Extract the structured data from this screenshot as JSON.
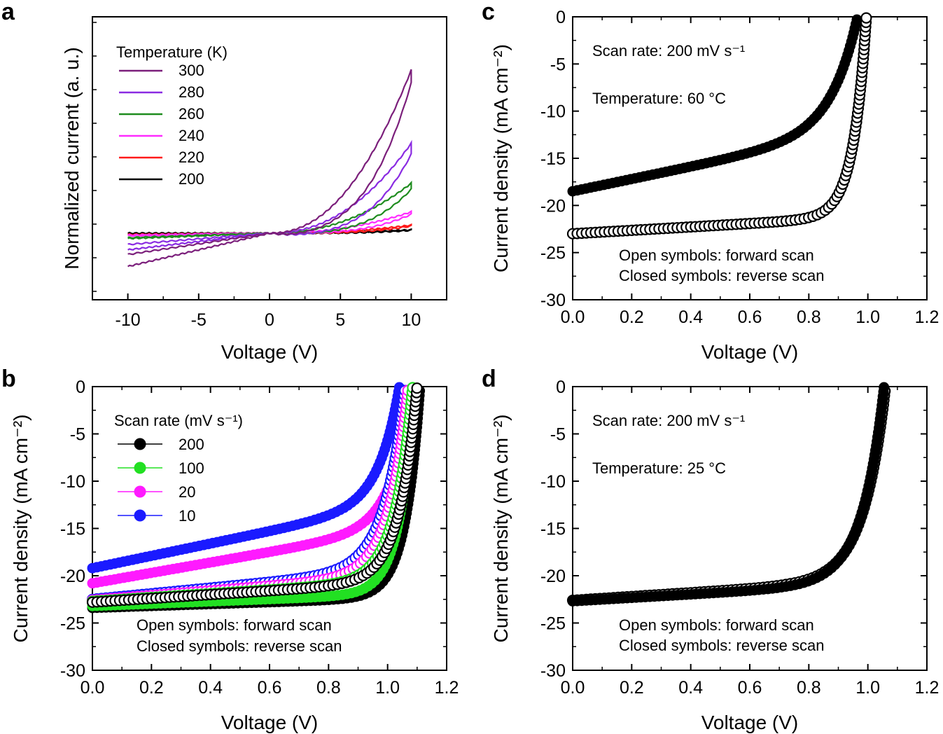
{
  "chart_data": [
    {
      "panel": "a",
      "type": "line",
      "xlabel": "Voltage (V)",
      "ylabel": "Normalized current (a. u.)",
      "xlim": [
        -12.5,
        12.5
      ],
      "ylim": [
        -1.0,
        3.25
      ],
      "x_ticks": [
        "-10",
        "-5",
        "0",
        "5",
        "10"
      ],
      "legend_title": "Temperature (K)",
      "series": [
        {
          "name": "300",
          "color": "#7b1f7b",
          "v_end": -0.5,
          "i_peak": 2.45,
          "i_return": 1.8,
          "i_neg": 0.1
        },
        {
          "name": "280",
          "color": "#8a2be2",
          "v_end": -0.25,
          "i_peak": 1.35,
          "i_return": 0.8,
          "i_neg": 0.25
        },
        {
          "name": "260",
          "color": "#1e8c1e",
          "v_end": -0.08,
          "i_peak": 0.75,
          "i_return": 0.45,
          "i_neg": 0.35
        },
        {
          "name": "240",
          "color": "#ff2cff",
          "v_end": -0.03,
          "i_peak": 0.32,
          "i_return": 0.2,
          "i_neg": 0.4
        },
        {
          "name": "220",
          "color": "#ff1a1a",
          "v_end": -0.02,
          "i_peak": 0.12,
          "i_return": 0.08,
          "i_neg": 0.42
        },
        {
          "name": "200",
          "color": "#000000",
          "v_end": 0.0,
          "i_peak": 0.05,
          "i_return": 0.03,
          "i_neg": 0.44
        }
      ]
    },
    {
      "panel": "b",
      "type": "scatter",
      "xlabel": "Voltage (V)",
      "ylabel": "Current density (mA cm⁻²)",
      "xlim": [
        0.0,
        1.2
      ],
      "ylim": [
        -30,
        0
      ],
      "x_ticks": [
        "0.0",
        "0.2",
        "0.4",
        "0.6",
        "0.8",
        "1.0",
        "1.2"
      ],
      "y_ticks": [
        "0",
        "-5",
        "-10",
        "-15",
        "-20",
        "-25",
        "-30"
      ],
      "legend_title": "Scan rate (mV s⁻¹)",
      "note_open": "Open symbols:    forward scan",
      "note_closed": "Closed symbols: reverse scan",
      "series": [
        {
          "name": "200",
          "color": "#000000",
          "reverse": {
            "jsc": 23.4,
            "voc": 1.11,
            "s": 0.05,
            "t": 1.0
          },
          "forward": {
            "jsc": 22.8,
            "voc": 1.1,
            "s": 0.06,
            "t": 2.0
          }
        },
        {
          "name": "100",
          "color": "#22e022",
          "reverse": {
            "jsc": 23.2,
            "voc": 1.09,
            "s": 0.05,
            "t": 1.2
          },
          "forward": {
            "jsc": 22.7,
            "voc": 1.085,
            "s": 0.06,
            "t": 2.0
          }
        },
        {
          "name": "20",
          "color": "#ff1aff",
          "reverse": {
            "jsc": 20.8,
            "voc": 1.085,
            "s": 0.07,
            "t": 5.5
          },
          "forward": {
            "jsc": 22.6,
            "voc": 1.07,
            "s": 0.065,
            "t": 2.5
          }
        },
        {
          "name": "10",
          "color": "#1a1aff",
          "reverse": {
            "jsc": 19.2,
            "voc": 1.04,
            "s": 0.07,
            "t": 6.5
          },
          "forward": {
            "jsc": 22.5,
            "voc": 1.06,
            "s": 0.07,
            "t": 3.0
          }
        }
      ]
    },
    {
      "panel": "c",
      "type": "scatter",
      "xlabel": "Voltage (V)",
      "ylabel": "Current density (mA cm⁻²)",
      "xlim": [
        0.0,
        1.2
      ],
      "ylim": [
        -30,
        0
      ],
      "x_ticks": [
        "0.0",
        "0.2",
        "0.4",
        "0.6",
        "0.8",
        "1.0",
        "1.2"
      ],
      "y_ticks": [
        "0",
        "-5",
        "-10",
        "-15",
        "-20",
        "-25",
        "-30"
      ],
      "note_scan": "Scan rate: 200 mV s⁻¹",
      "note_temp": "Temperature: 60 °C",
      "note_open": "Open symbols:    forward scan",
      "note_closed": "Closed symbols: reverse scan",
      "series": [
        {
          "name": "reverse scan",
          "color": "#000000",
          "filled": true,
          "jsc": 18.5,
          "voc": 0.965,
          "s": 0.09,
          "t": 6.5
        },
        {
          "name": "forward scan",
          "color": "#000000",
          "filled": false,
          "jsc": 23.0,
          "voc": 0.995,
          "s": 0.045,
          "t": 1.8
        }
      ]
    },
    {
      "panel": "d",
      "type": "scatter",
      "xlabel": "Voltage (V)",
      "ylabel": "Current density (mA cm⁻²)",
      "xlim": [
        0.0,
        1.2
      ],
      "ylim": [
        -30,
        0
      ],
      "x_ticks": [
        "0.0",
        "0.2",
        "0.4",
        "0.6",
        "0.8",
        "1.0",
        "1.2"
      ],
      "y_ticks": [
        "0",
        "-5",
        "-10",
        "-15",
        "-20",
        "-25",
        "-30"
      ],
      "note_scan": "Scan rate: 200 mV s⁻¹",
      "note_temp": "Temperature: 25 °C",
      "note_open": "Open symbols:    forward scan",
      "note_closed": "Closed symbols: reverse scan",
      "series": [
        {
          "name": "forward scan",
          "color": "#000000",
          "filled": false,
          "jsc": 22.6,
          "voc": 1.06,
          "s": 0.075,
          "t": 2.0
        },
        {
          "name": "reverse scan",
          "color": "#000000",
          "filled": true,
          "jsc": 22.7,
          "voc": 1.055,
          "s": 0.075,
          "t": 1.8
        }
      ]
    }
  ],
  "panel_letters": {
    "a": "a",
    "b": "b",
    "c": "c",
    "d": "d"
  }
}
